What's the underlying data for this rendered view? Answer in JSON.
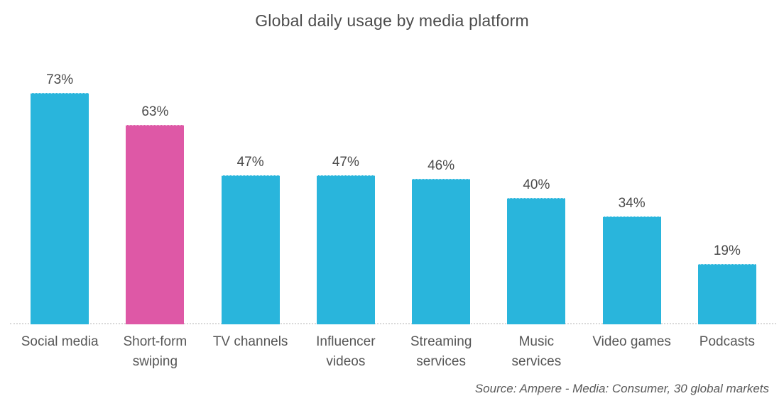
{
  "chart_data": {
    "type": "bar",
    "title": "Global daily usage by media platform",
    "categories": [
      "Social media",
      "Short-form swiping",
      "TV channels",
      "Influencer videos",
      "Streaming services",
      "Music services",
      "Video games",
      "Podcasts"
    ],
    "values": [
      73,
      63,
      47,
      47,
      46,
      40,
      34,
      19
    ],
    "value_labels": [
      "73%",
      "63%",
      "47%",
      "47%",
      "46%",
      "40%",
      "34%",
      "19%"
    ],
    "unit": "%",
    "xlabel": "",
    "ylabel": "",
    "ylim": [
      0,
      80
    ],
    "grid": false,
    "legend": false,
    "highlight_category": "Short-form swiping",
    "colors": {
      "bar_default": "#29b5dc",
      "bar_highlight": "#de58a6",
      "baseline": "#d9d9d9",
      "title_text": "#4c4c4c",
      "label_text": "#565656"
    },
    "source": "Source: Ampere - Media: Consumer, 30 global markets"
  }
}
